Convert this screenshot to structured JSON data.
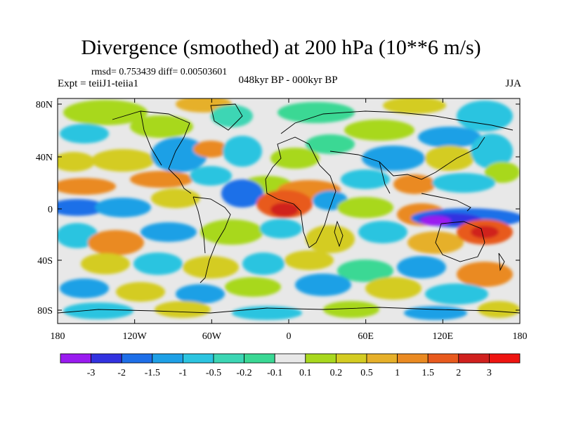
{
  "title": "Divergence (smoothed) at 200 hPa (10**6 m/s)",
  "stats": "rmsd= 0.753439 diff= 0.00503601",
  "experiment": "Expt = teiiJ1-teiia1",
  "period": "048kyr BP - 000kyr BP",
  "season": "JJA",
  "axes": {
    "lat_ticks": [
      "80N",
      "40N",
      "0",
      "40S",
      "80S"
    ],
    "lon_ticks": [
      "180",
      "120W",
      "60W",
      "0",
      "60E",
      "120E",
      "180"
    ]
  },
  "colorbar": {
    "labels": [
      "-3",
      "-2",
      "-1.5",
      "-1",
      "-0.5",
      "-0.2",
      "-0.1",
      "0.1",
      "0.2",
      "0.5",
      "1",
      "1.5",
      "2",
      "3"
    ],
    "colors": [
      "#9a1bf0",
      "#3232e0",
      "#1e6fe8",
      "#1ea0e6",
      "#2cc4e0",
      "#3cd6b4",
      "#3ad894",
      "#e8e8e8",
      "#a8d81e",
      "#d4cc22",
      "#e6b02a",
      "#ea8a22",
      "#e85a1e",
      "#d0201e",
      "#ee1410"
    ]
  },
  "colors": {
    "neutral": "#e8e8e8",
    "coast": "#000000"
  }
}
